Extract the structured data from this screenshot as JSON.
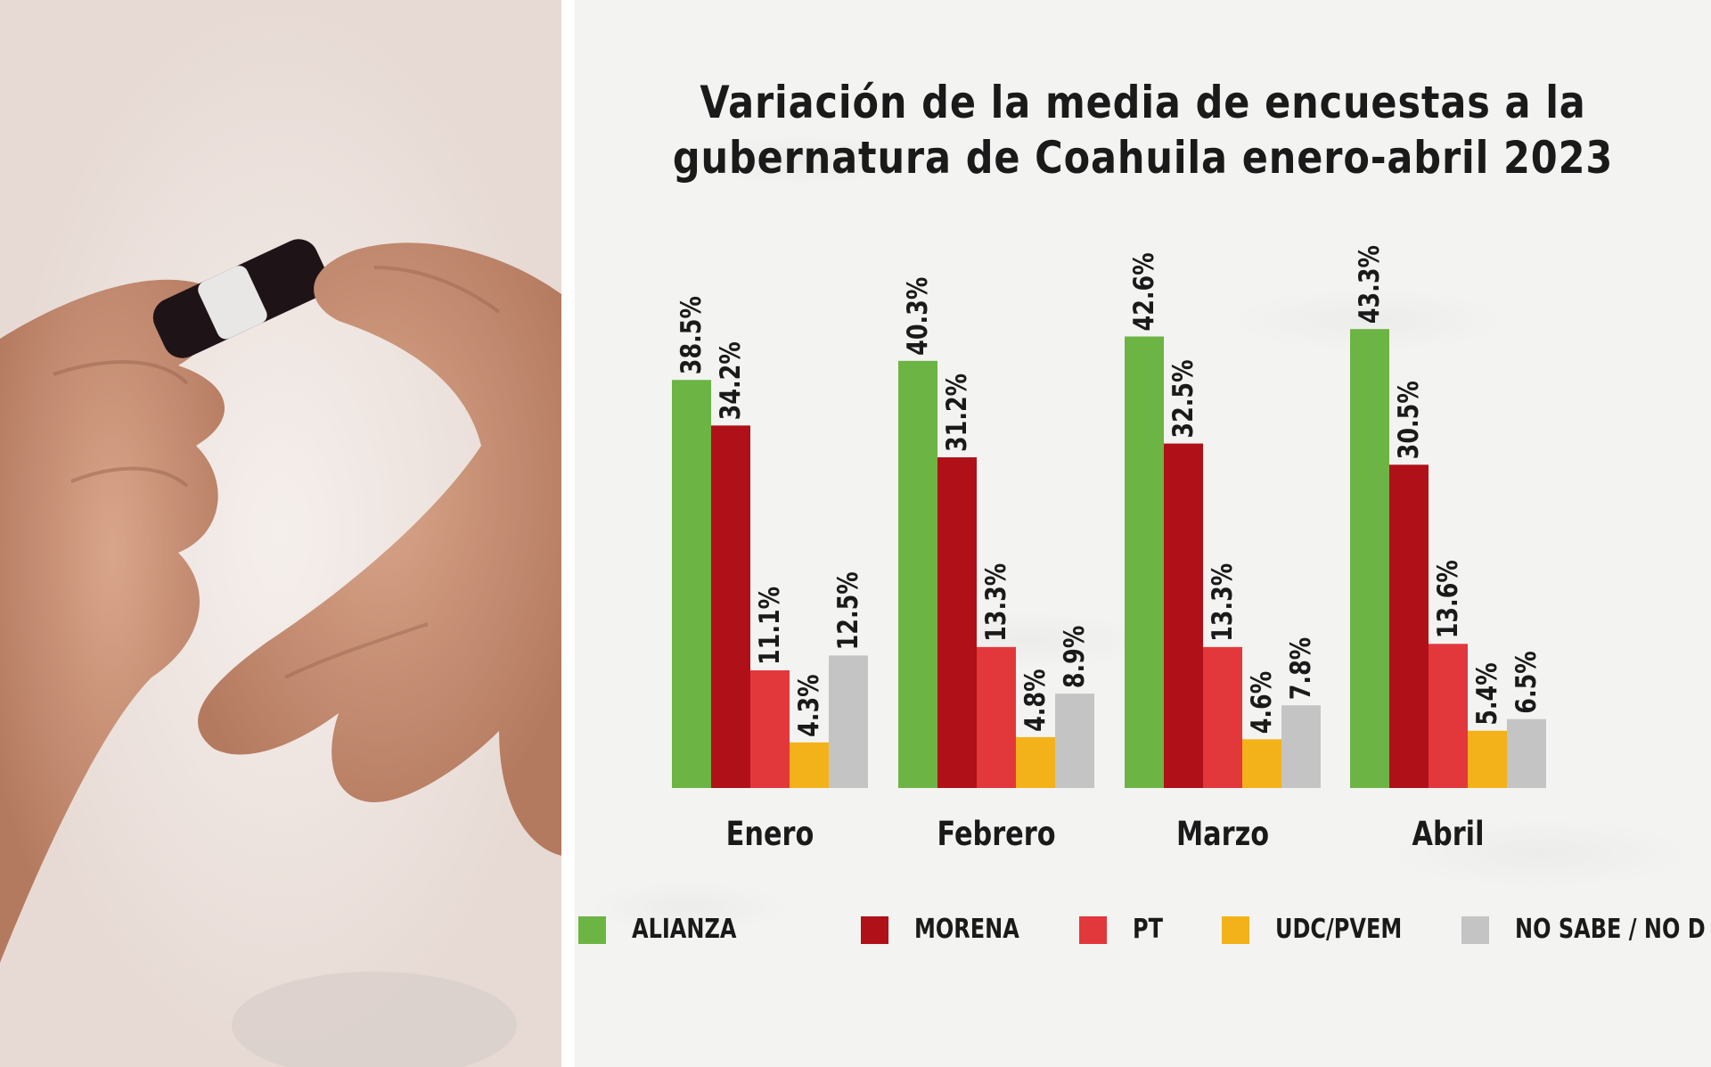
{
  "colors": {
    "alianza": "#6cb443",
    "morena": "#b01018",
    "pt": "#e2383b",
    "udc": "#f4b21a",
    "nosabe": "#c4c4c4"
  },
  "chart_data": {
    "type": "bar",
    "title": "Variación de la media de encuestas a la gubernatura de Coahuila enero-abril 2023",
    "title_lines": [
      "Variación de la media de encuestas a la",
      "gubernatura de Coahuila enero-abril 2023"
    ],
    "categories": [
      "Enero",
      "Febrero",
      "Marzo",
      "Abril"
    ],
    "series": [
      {
        "name": "ALIANZA",
        "color": "#6cb443",
        "values": [
          38.5,
          40.3,
          42.6,
          43.3
        ],
        "labels": [
          "38.5%",
          "40.3%",
          "42.6%",
          "43.3%"
        ]
      },
      {
        "name": "MORENA",
        "color": "#b01018",
        "values": [
          34.2,
          31.2,
          32.5,
          30.5
        ],
        "labels": [
          "34.2%",
          "31.2%",
          "32.5%",
          "30.5%"
        ]
      },
      {
        "name": "PT",
        "color": "#e2383b",
        "values": [
          11.1,
          13.3,
          13.3,
          13.6
        ],
        "labels": [
          "11.1%",
          "13.3%",
          "13.3%",
          "13.6%"
        ]
      },
      {
        "name": "UDC/PVEM",
        "color": "#f4b21a",
        "values": [
          4.3,
          4.8,
          4.6,
          5.4
        ],
        "labels": [
          "4.3%",
          "4.8%",
          "4.6%",
          "5.4%"
        ]
      },
      {
        "name": "NO SABE / NO D",
        "color": "#c4c4c4",
        "values": [
          12.5,
          8.9,
          7.8,
          6.5
        ],
        "labels": [
          "12.5%",
          "8.9%",
          "7.8%",
          "6.5%"
        ]
      }
    ],
    "ylim": [
      0,
      50
    ],
    "grid": false,
    "legend": "bottom"
  }
}
